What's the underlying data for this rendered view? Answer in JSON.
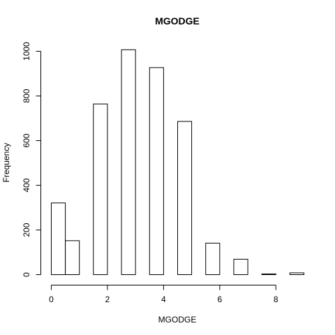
{
  "chart_data": {
    "type": "bar",
    "title": "MGODGE",
    "xlabel": "MGODGE",
    "ylabel": "Frequency",
    "bin_edges": [
      0,
      0.5,
      1,
      1.5,
      2,
      2.5,
      3,
      3.5,
      4,
      4.5,
      5,
      5.5,
      6,
      6.5,
      7,
      7.5,
      8,
      8.5,
      9
    ],
    "values": [
      321,
      152,
      0,
      764,
      0,
      1007,
      0,
      927,
      0,
      686,
      0,
      141,
      0,
      69,
      0,
      3,
      0,
      8
    ],
    "xlim": [
      0,
      9
    ],
    "ylim": [
      0,
      1007
    ],
    "xticks": [
      0,
      2,
      4,
      6,
      8
    ],
    "yticks": [
      0,
      200,
      400,
      600,
      800,
      1000
    ],
    "grid": false,
    "colors": {
      "bar_fill": "#ffffff",
      "bar_stroke": "#000000"
    }
  }
}
